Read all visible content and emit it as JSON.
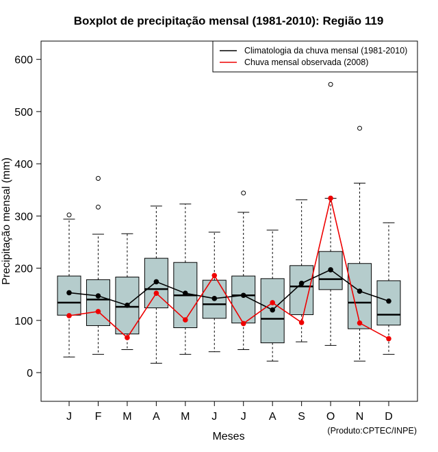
{
  "chart_data": {
    "type": "boxplot",
    "title": "Boxplot de precipitação mensal (1981-2010): Região 119",
    "xlabel": "Meses",
    "ylabel": "Precipitação mensal (mm)",
    "ylim": [
      -55,
      635
    ],
    "yticks": [
      0,
      100,
      200,
      300,
      400,
      500,
      600
    ],
    "categories": [
      "J",
      "F",
      "M",
      "A",
      "M",
      "J",
      "J",
      "A",
      "S",
      "O",
      "N",
      "D"
    ],
    "boxes": [
      {
        "whisker_low": 30,
        "q1": 110,
        "median": 134,
        "q3": 185,
        "whisker_high": 294,
        "outliers": [
          302
        ]
      },
      {
        "whisker_low": 35,
        "q1": 90,
        "median": 140,
        "q3": 178,
        "whisker_high": 265,
        "outliers": [
          317,
          372
        ]
      },
      {
        "whisker_low": 44,
        "q1": 74,
        "median": 126,
        "q3": 183,
        "whisker_high": 266,
        "outliers": []
      },
      {
        "whisker_low": 18,
        "q1": 124,
        "median": 160,
        "q3": 219,
        "whisker_high": 319,
        "outliers": []
      },
      {
        "whisker_low": 35,
        "q1": 86,
        "median": 148,
        "q3": 211,
        "whisker_high": 323,
        "outliers": []
      },
      {
        "whisker_low": 40,
        "q1": 104,
        "median": 131,
        "q3": 177,
        "whisker_high": 269,
        "outliers": []
      },
      {
        "whisker_low": 44,
        "q1": 95,
        "median": 148,
        "q3": 185,
        "whisker_high": 307,
        "outliers": [
          344
        ]
      },
      {
        "whisker_low": 22,
        "q1": 57,
        "median": 103,
        "q3": 180,
        "whisker_high": 273,
        "outliers": []
      },
      {
        "whisker_low": 59,
        "q1": 111,
        "median": 165,
        "q3": 205,
        "whisker_high": 331,
        "outliers": []
      },
      {
        "whisker_low": 52,
        "q1": 159,
        "median": 179,
        "q3": 232,
        "whisker_high": 334,
        "outliers": [
          552
        ]
      },
      {
        "whisker_low": 22,
        "q1": 84,
        "median": 134,
        "q3": 209,
        "whisker_high": 363,
        "outliers": [
          468
        ]
      },
      {
        "whisker_low": 35,
        "q1": 91,
        "median": 111,
        "q3": 176,
        "whisker_high": 287,
        "outliers": []
      }
    ],
    "series": [
      {
        "name": "Climatologia da chuva mensal (1981-2010)",
        "color": "#000000",
        "values": [
          153,
          147,
          129,
          174,
          152,
          142,
          148,
          120,
          171,
          197,
          156,
          137
        ]
      },
      {
        "name": "Chuva mensal observada (2008)",
        "color": "#ee0000",
        "values": [
          109,
          117,
          67,
          152,
          101,
          186,
          94,
          134,
          96,
          334,
          95,
          65
        ]
      }
    ],
    "legend_position": "top-right",
    "box_color": "#b5cccc",
    "credit": "(Produto:CPTEC/INPE)"
  }
}
